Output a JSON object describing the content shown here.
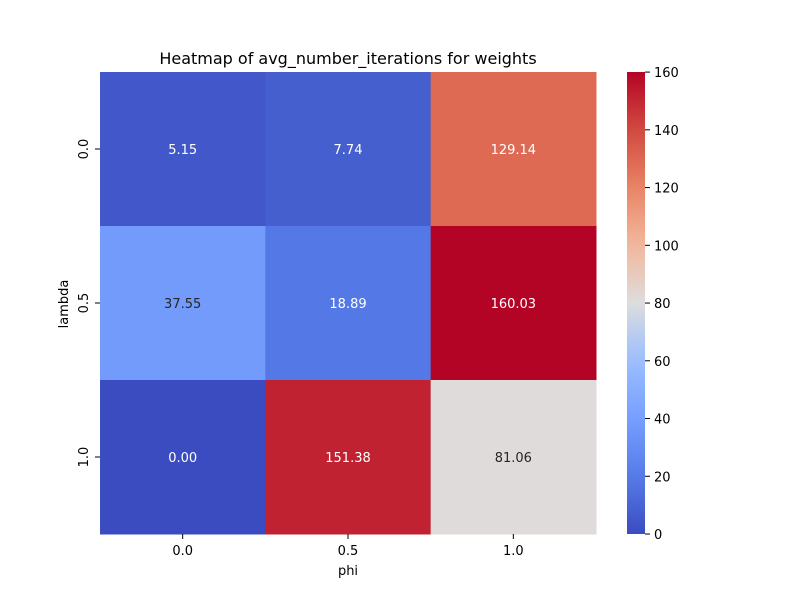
{
  "chart_data": {
    "type": "heatmap",
    "title": "Heatmap of avg_number_iterations for weights",
    "xlabel": "phi",
    "ylabel": "lambda",
    "x_categories": [
      "0.0",
      "0.5",
      "1.0"
    ],
    "y_categories": [
      "0.0",
      "0.5",
      "1.0"
    ],
    "values": [
      [
        5.15,
        7.74,
        129.14
      ],
      [
        37.55,
        18.89,
        160.03
      ],
      [
        0.0,
        151.38,
        81.06
      ]
    ],
    "value_labels": [
      [
        "5.15",
        "7.74",
        "129.14"
      ],
      [
        "37.55",
        "18.89",
        "160.03"
      ],
      [
        "0.00",
        "151.38",
        "81.06"
      ]
    ],
    "colorbar": {
      "range": [
        0,
        160.03
      ],
      "ticks": [
        "0",
        "20",
        "40",
        "60",
        "80",
        "100",
        "120",
        "140",
        "160"
      ],
      "colormap": "coolwarm"
    },
    "grid": false
  }
}
